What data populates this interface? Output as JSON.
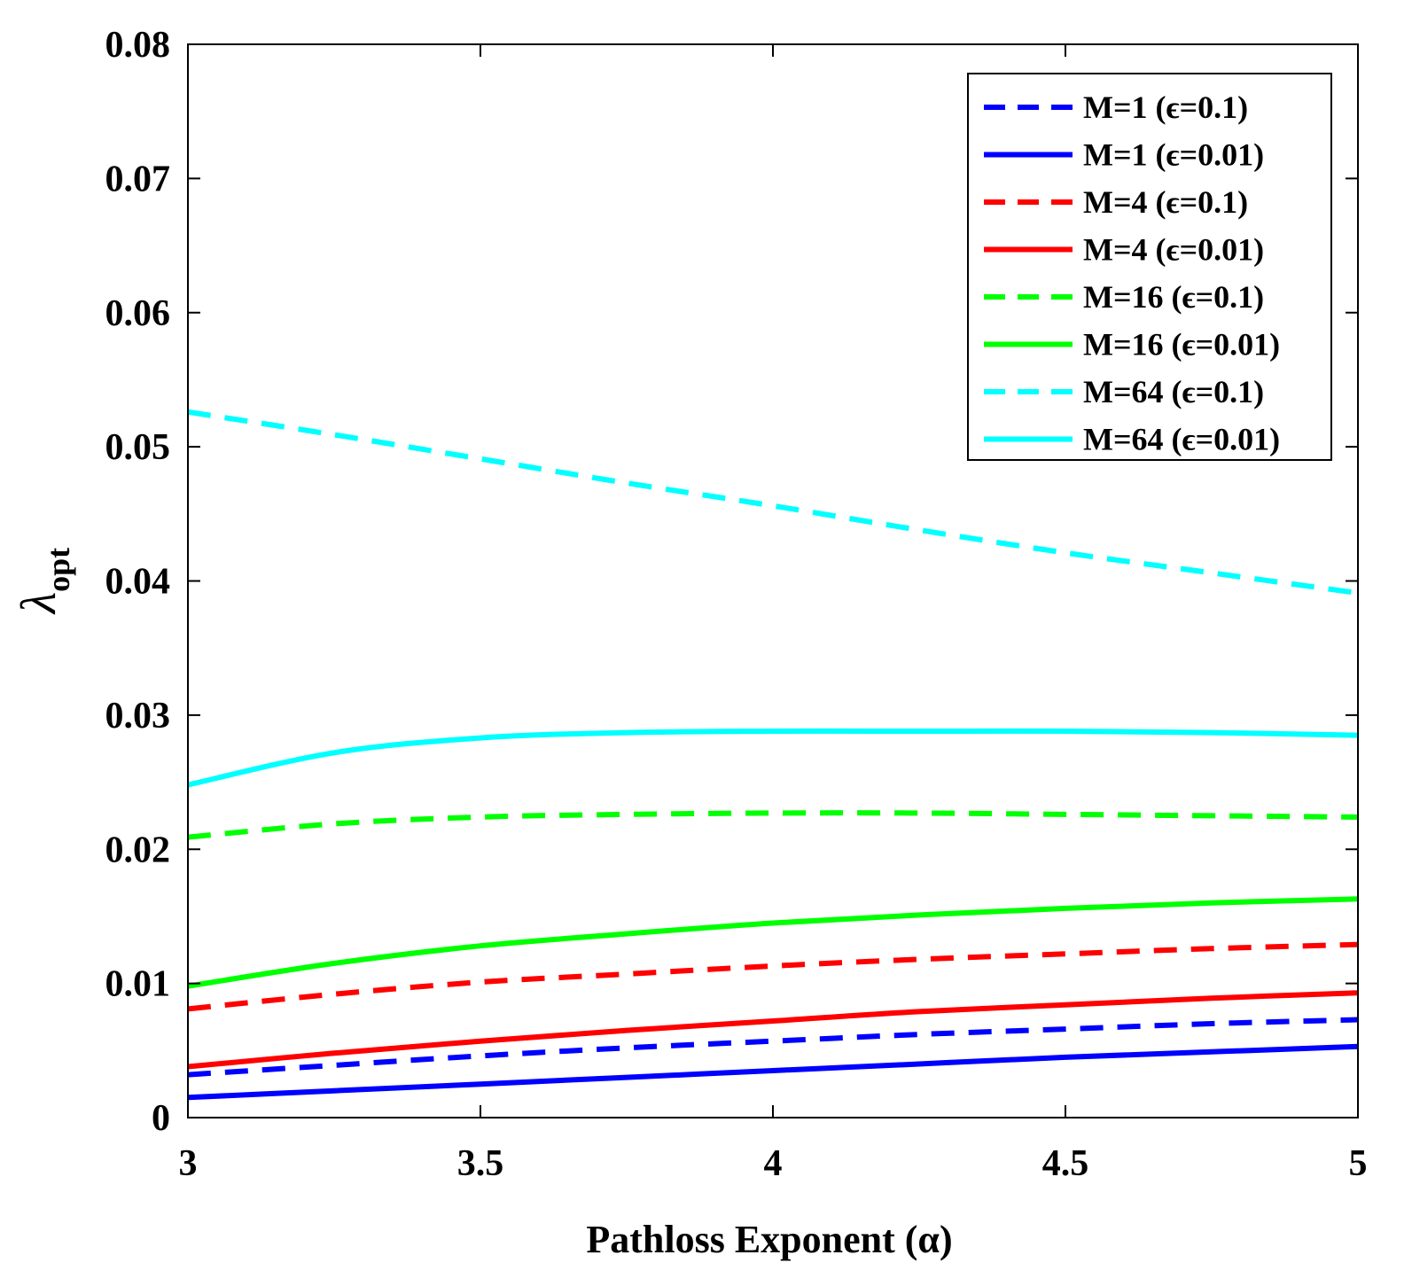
{
  "chart_data": {
    "type": "line",
    "title": "",
    "xlabel": "Pathloss Exponent (α)",
    "ylabel": "λopt",
    "ylabel_main": "λ",
    "ylabel_sub": "opt",
    "xlim": [
      3,
      5
    ],
    "ylim": [
      0,
      0.08
    ],
    "xticks": [
      3,
      3.5,
      4,
      4.5,
      5
    ],
    "xtick_labels": [
      "3",
      "3.5",
      "4",
      "4.5",
      "5"
    ],
    "yticks": [
      0,
      0.01,
      0.02,
      0.03,
      0.04,
      0.05,
      0.06,
      0.07,
      0.08
    ],
    "ytick_labels": [
      "0",
      "0.01",
      "0.02",
      "0.03",
      "0.04",
      "0.05",
      "0.06",
      "0.07",
      "0.08"
    ],
    "grid": false,
    "legend_position": "top-right",
    "x": [
      3,
      3.25,
      3.5,
      3.75,
      4,
      4.25,
      4.5,
      4.75,
      5
    ],
    "series": [
      {
        "name": "M=1 (ϵ=0.1)",
        "color": "#0000ff",
        "style": "dashed",
        "values": [
          0.0032,
          0.0039,
          0.0046,
          0.0052,
          0.0057,
          0.0062,
          0.0066,
          0.007,
          0.0073
        ]
      },
      {
        "name": "M=1 (ϵ=0.01)",
        "color": "#0000ff",
        "style": "solid",
        "values": [
          0.0015,
          0.002,
          0.0025,
          0.003,
          0.0035,
          0.004,
          0.0045,
          0.0049,
          0.0053
        ]
      },
      {
        "name": "M=4 (ϵ=0.1)",
        "color": "#ff0000",
        "style": "dashed",
        "values": [
          0.0081,
          0.0092,
          0.0101,
          0.0107,
          0.0113,
          0.0118,
          0.0122,
          0.0126,
          0.0129
        ]
      },
      {
        "name": "M=4 (ϵ=0.01)",
        "color": "#ff0000",
        "style": "solid",
        "values": [
          0.0038,
          0.0048,
          0.0057,
          0.0065,
          0.0072,
          0.0079,
          0.0084,
          0.0089,
          0.0093
        ]
      },
      {
        "name": "M=16 (ϵ=0.1)",
        "color": "#00ff00",
        "style": "dashed",
        "values": [
          0.0209,
          0.0219,
          0.0224,
          0.0226,
          0.0227,
          0.0227,
          0.0226,
          0.0225,
          0.0224
        ]
      },
      {
        "name": "M=16 (ϵ=0.01)",
        "color": "#00ff00",
        "style": "solid",
        "values": [
          0.0098,
          0.0115,
          0.0128,
          0.0137,
          0.0145,
          0.0151,
          0.0156,
          0.016,
          0.0163
        ]
      },
      {
        "name": "M=64 (ϵ=0.1)",
        "color": "#00ffff",
        "style": "dashed",
        "values": [
          0.0526,
          0.0509,
          0.0491,
          0.0473,
          0.0456,
          0.0438,
          0.0421,
          0.0406,
          0.0391
        ]
      },
      {
        "name": "M=64 (ϵ=0.01)",
        "color": "#00ffff",
        "style": "solid",
        "values": [
          0.0248,
          0.0272,
          0.0283,
          0.0287,
          0.0288,
          0.0288,
          0.0288,
          0.0287,
          0.0285
        ]
      }
    ]
  }
}
